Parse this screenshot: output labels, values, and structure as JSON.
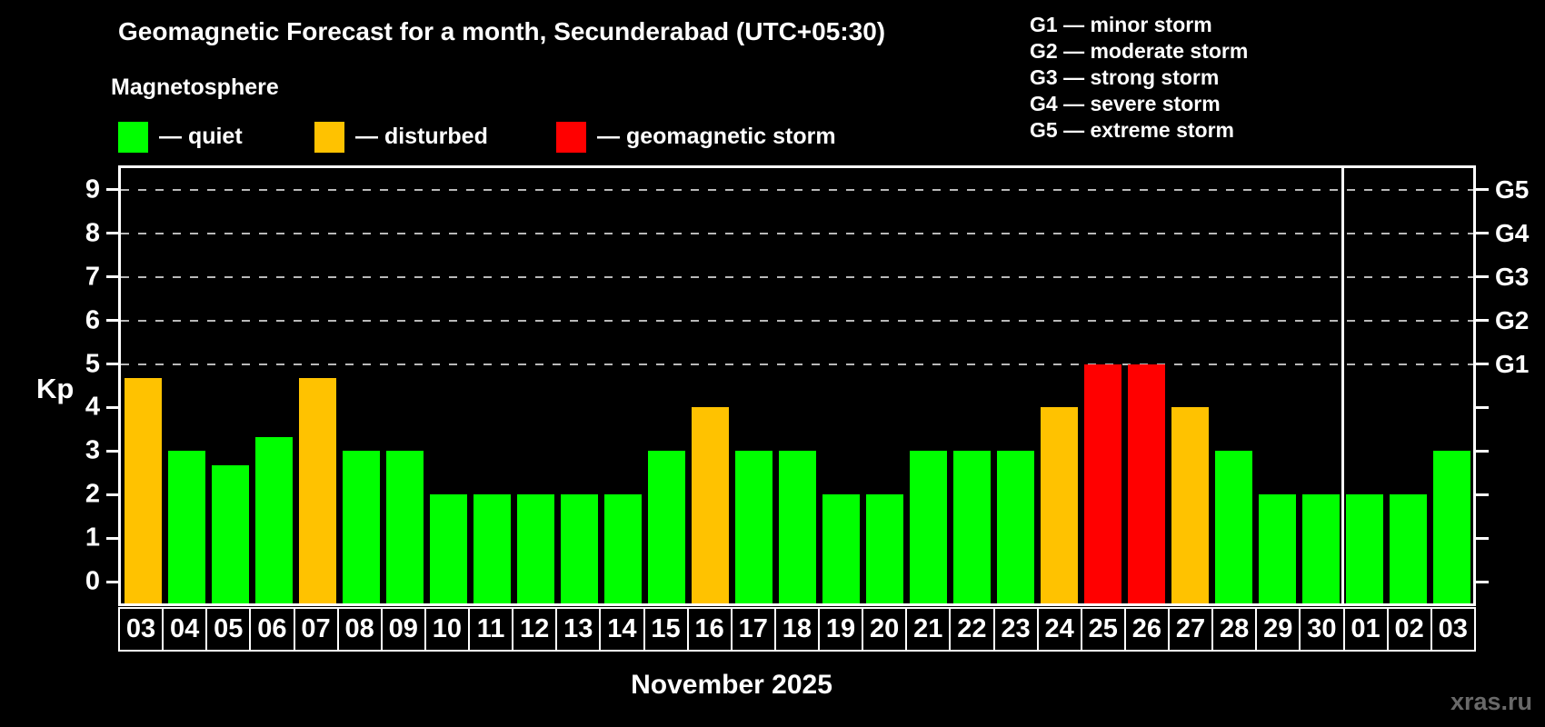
{
  "title": "Geomagnetic Forecast for a month, Secunderabad (UTC+05:30)",
  "subtitle": "Magnetosphere",
  "legend": {
    "items": [
      {
        "name": "quiet",
        "label": "— quiet",
        "color": "#00ff00"
      },
      {
        "name": "disturbed",
        "label": "— disturbed",
        "color": "#ffc200"
      },
      {
        "name": "storm",
        "label": "— geomagnetic storm",
        "color": "#ff0000"
      }
    ]
  },
  "storm_scale": [
    "G1 — minor storm",
    "G2 — moderate storm",
    "G3 — strong storm",
    "G4 — severe storm",
    "G5 — extreme storm"
  ],
  "y_axis": {
    "label": "Kp",
    "ticks": [
      0,
      1,
      2,
      3,
      4,
      5,
      6,
      7,
      8,
      9
    ],
    "gridlines": [
      5,
      6,
      7,
      8,
      9
    ],
    "range": [
      -0.5,
      9.5
    ]
  },
  "right_axis": {
    "ticks": [
      0,
      1,
      2,
      3,
      4,
      5,
      6,
      7,
      8,
      9
    ],
    "labels": [
      {
        "kp": 5,
        "label": "G1"
      },
      {
        "kp": 6,
        "label": "G2"
      },
      {
        "kp": 7,
        "label": "G3"
      },
      {
        "kp": 8,
        "label": "G4"
      },
      {
        "kp": 9,
        "label": "G5"
      }
    ]
  },
  "x_axis": {
    "label": "November 2025"
  },
  "watermark": "xras.ru",
  "chart_data": {
    "type": "bar",
    "title": "Geomagnetic Forecast for a month, Secunderabad (UTC+05:30)",
    "xlabel": "November 2025",
    "ylabel": "Kp",
    "ylim": [
      0,
      9
    ],
    "grid": "dashed horizontal at Kp 5-9",
    "legend_position": "top-left",
    "categories": [
      "03",
      "04",
      "05",
      "06",
      "07",
      "08",
      "09",
      "10",
      "11",
      "12",
      "13",
      "14",
      "15",
      "16",
      "17",
      "18",
      "19",
      "20",
      "21",
      "22",
      "23",
      "24",
      "25",
      "26",
      "27",
      "28",
      "29",
      "30",
      "01",
      "02",
      "03"
    ],
    "values": [
      4.67,
      3,
      2.67,
      3.33,
      4.67,
      3,
      3,
      2,
      2,
      2,
      2,
      2,
      3,
      4,
      3,
      3,
      2,
      2,
      3,
      3,
      3,
      4,
      5,
      5,
      4,
      3,
      2,
      2,
      2,
      2,
      3
    ],
    "statuses": [
      "disturbed",
      "quiet",
      "quiet",
      "quiet",
      "disturbed",
      "quiet",
      "quiet",
      "quiet",
      "quiet",
      "quiet",
      "quiet",
      "quiet",
      "quiet",
      "disturbed",
      "quiet",
      "quiet",
      "quiet",
      "quiet",
      "quiet",
      "quiet",
      "quiet",
      "disturbed",
      "storm",
      "storm",
      "disturbed",
      "quiet",
      "quiet",
      "quiet",
      "quiet",
      "quiet",
      "quiet"
    ],
    "status_colors": {
      "quiet": "#00ff00",
      "disturbed": "#ffc200",
      "storm": "#ff0000"
    },
    "month_separator_index": 28
  }
}
